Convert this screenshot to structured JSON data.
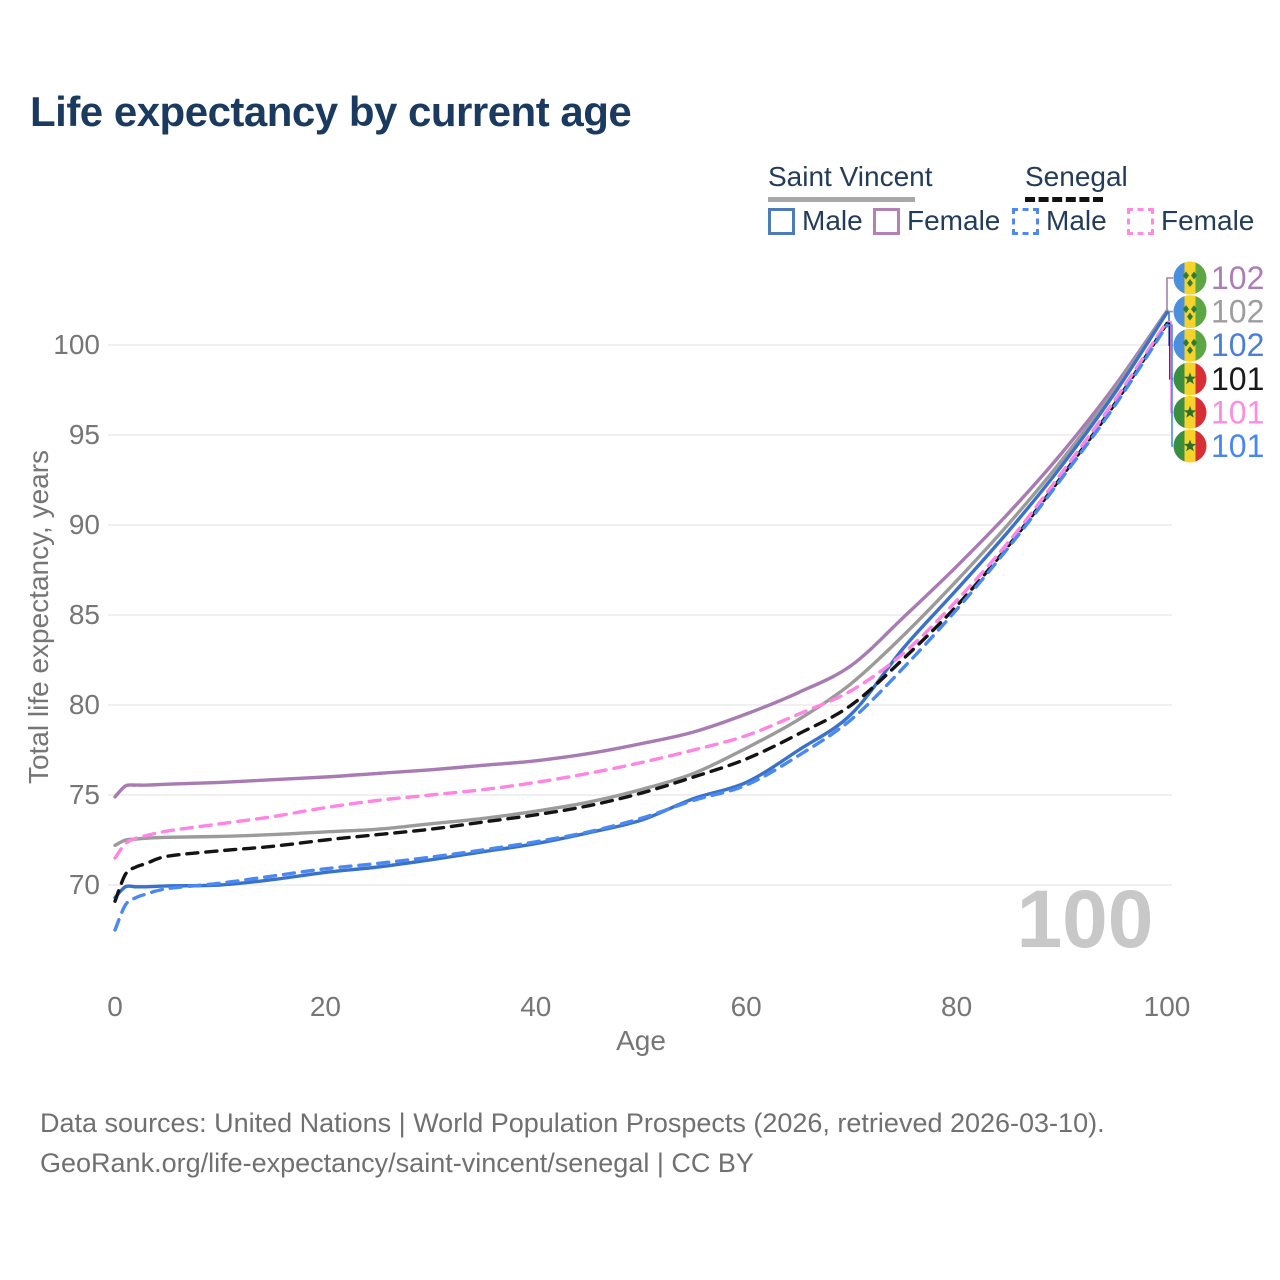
{
  "header": {
    "title": "Life expectancy by current age"
  },
  "legend": {
    "groups": [
      {
        "label": "Saint Vincent",
        "line_style": "solid",
        "underline_color": "#a8a8a8",
        "items": [
          {
            "label": "Male",
            "color": "#4d7bb8",
            "dash": false
          },
          {
            "label": "Female",
            "color": "#b381b3",
            "dash": false
          }
        ]
      },
      {
        "label": "Senegal",
        "line_style": "dashed",
        "underline_color": "#111111",
        "items": [
          {
            "label": "Male",
            "color": "#4d8af0",
            "dash": true
          },
          {
            "label": "Female",
            "color": "#ff8ae0",
            "dash": true
          }
        ]
      }
    ]
  },
  "chart_data": {
    "type": "line",
    "title": "Life expectancy by current age",
    "xlabel": "Age",
    "ylabel": "Total life expectancy, years",
    "xlim": [
      0,
      100
    ],
    "ylim": [
      66.5,
      103
    ],
    "xticks": [
      0,
      20,
      40,
      60,
      80,
      100
    ],
    "yticks": [
      70,
      75,
      80,
      85,
      90,
      95,
      100
    ],
    "grid": "horizontal",
    "legend_position": "top-right",
    "hover_age_watermark": "100",
    "x": [
      0,
      1,
      2,
      3,
      5,
      10,
      15,
      20,
      25,
      30,
      35,
      40,
      45,
      50,
      55,
      60,
      65,
      70,
      75,
      80,
      85,
      90,
      95,
      100
    ],
    "series": [
      {
        "name": "Saint Vincent Female",
        "country": "Saint Vincent",
        "sex": "Female",
        "color": "#a87cb3",
        "dash": "solid",
        "end_label": "102",
        "end_label_color": "#af7cba",
        "flag_icon": "saint-vincent-flag-icon",
        "values": [
          74.9,
          75.5,
          75.55,
          75.55,
          75.6,
          75.7,
          75.85,
          76.0,
          76.2,
          76.4,
          76.65,
          76.9,
          77.3,
          77.85,
          78.5,
          79.5,
          80.7,
          82.2,
          84.9,
          87.7,
          90.7,
          94.0,
          97.7,
          101.9
        ]
      },
      {
        "name": "Saint Vincent Total",
        "country": "Saint Vincent",
        "sex": "Both",
        "color": "#9b9b9b",
        "dash": "solid",
        "end_label": "102",
        "end_label_color": "#9e9e9e",
        "flag_icon": "saint-vincent-flag-icon",
        "values": [
          72.2,
          72.5,
          72.55,
          72.6,
          72.65,
          72.7,
          72.8,
          72.95,
          73.1,
          73.4,
          73.7,
          74.1,
          74.6,
          75.3,
          76.2,
          77.6,
          79.2,
          81.2,
          83.9,
          86.9,
          90.1,
          93.6,
          97.5,
          101.85
        ]
      },
      {
        "name": "Saint Vincent Male",
        "country": "Saint Vincent",
        "sex": "Male",
        "color": "#3a72c8",
        "dash": "solid",
        "end_label": "102",
        "end_label_color": "#4a80d9",
        "flag_icon": "saint-vincent-flag-icon",
        "values": [
          69.3,
          69.9,
          69.9,
          69.9,
          69.95,
          70.0,
          70.3,
          70.7,
          71.0,
          71.4,
          71.85,
          72.3,
          72.9,
          73.6,
          74.8,
          75.7,
          77.5,
          79.5,
          83.2,
          86.4,
          89.7,
          93.3,
          97.3,
          101.8
        ]
      },
      {
        "name": "Senegal Total",
        "country": "Senegal",
        "sex": "Both",
        "color": "#141414",
        "dash": "dashed",
        "end_label": "101",
        "end_label_color": "#1a1a1a",
        "flag_icon": "senegal-flag-icon",
        "values": [
          69.1,
          70.6,
          71.0,
          71.2,
          71.6,
          71.9,
          72.15,
          72.5,
          72.8,
          73.1,
          73.5,
          73.9,
          74.4,
          75.1,
          76.0,
          77.0,
          78.4,
          80.0,
          82.6,
          85.5,
          88.9,
          92.7,
          96.7,
          101.2
        ]
      },
      {
        "name": "Senegal Female",
        "country": "Senegal",
        "sex": "Female",
        "color": "#ff85e2",
        "dash": "dashed",
        "end_label": "101",
        "end_label_color": "#ff8ce0",
        "flag_icon": "senegal-flag-icon",
        "values": [
          71.5,
          72.3,
          72.6,
          72.75,
          73.0,
          73.4,
          73.8,
          74.3,
          74.7,
          75.0,
          75.3,
          75.7,
          76.2,
          76.8,
          77.5,
          78.3,
          79.5,
          80.8,
          82.9,
          85.8,
          89.1,
          92.9,
          96.9,
          101.3
        ]
      },
      {
        "name": "Senegal Male",
        "country": "Senegal",
        "sex": "Male",
        "color": "#4a89f2",
        "dash": "dashed",
        "end_label": "101",
        "end_label_color": "#4a86f0",
        "flag_icon": "senegal-flag-icon",
        "values": [
          67.5,
          68.9,
          69.3,
          69.5,
          69.8,
          70.1,
          70.5,
          70.9,
          71.2,
          71.55,
          71.95,
          72.4,
          72.95,
          73.7,
          74.7,
          75.55,
          77.2,
          79.2,
          82.1,
          85.3,
          88.8,
          92.6,
          96.6,
          101.1
        ]
      }
    ]
  },
  "footer": {
    "line1": "Data sources: United Nations | World Population Prospects (2026, retrieved 2026-03-10).",
    "line2": "GeoRank.org/life-expectancy/saint-vincent/senegal | CC BY"
  },
  "colors": {
    "title_text": "#1b3a5f",
    "axis_text": "#767676",
    "gridline": "#e8e8e8",
    "watermark": "#c8c8c8",
    "footer_text": "#707070"
  }
}
